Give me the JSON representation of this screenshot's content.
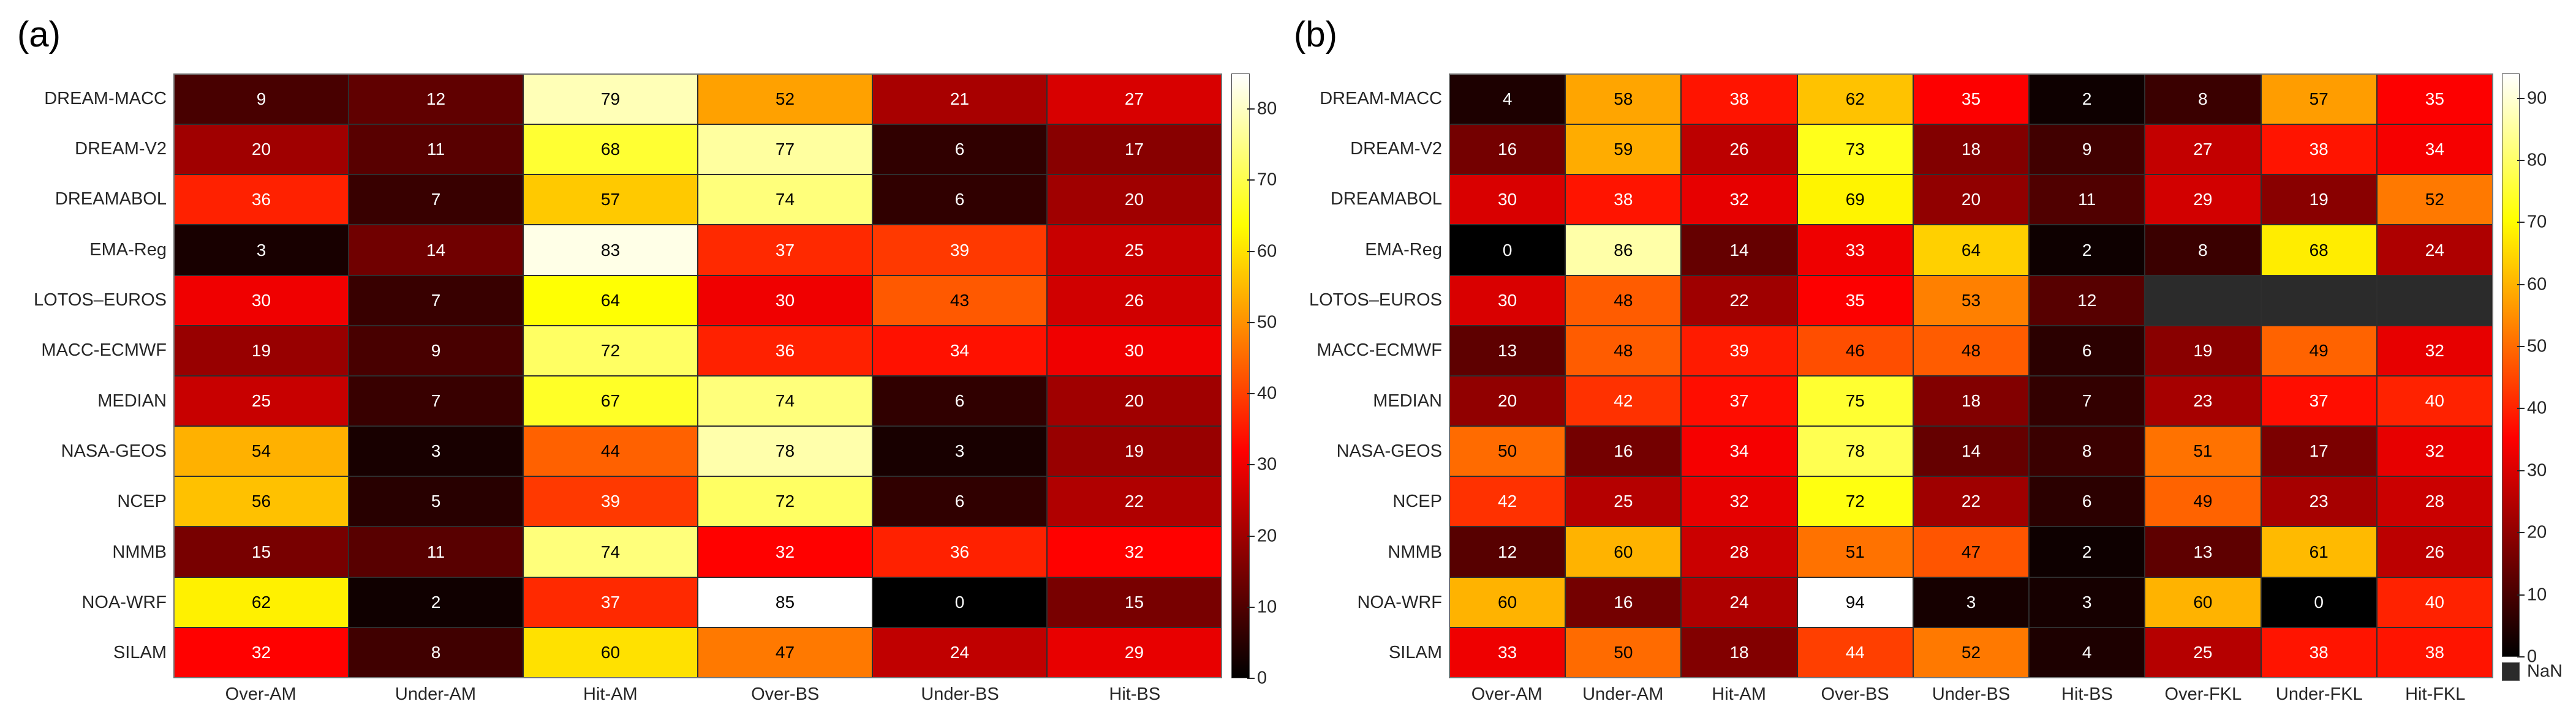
{
  "colors": {
    "background": "#ffffff",
    "nan_cell": "#2b2b2b",
    "grid_line": "#2e2e2e",
    "plot_border": "#757575",
    "colorbar_border": "#4d4d4d",
    "label_text": "#262626",
    "panel_letter_text": "#000000",
    "cell_text_light": "#ffffff",
    "cell_text_dark": "#000000",
    "colormap_stops": [
      "#000000",
      "#ff0000",
      "#ffff00",
      "#ffffff"
    ]
  },
  "chart_data": [
    {
      "type": "heatmap",
      "panel_label": "(a)",
      "colormap": "hot",
      "vmin": 0,
      "vmax": 85,
      "grid": true,
      "legend_position": "right-colorbar",
      "colorbar_ticks": [
        0,
        10,
        20,
        30,
        40,
        50,
        60,
        70,
        80
      ],
      "nan_label": null,
      "rows": [
        "DREAM-MACC",
        "DREAM-V2",
        "DREAMABOL",
        "EMA-Reg",
        "LOTOS–EUROS",
        "MACC-ECMWF",
        "MEDIAN",
        "NASA-GEOS",
        "NCEP",
        "NMMB",
        "NOA-WRF",
        "SILAM"
      ],
      "columns": [
        "Over-AM",
        "Under-AM",
        "Hit-AM",
        "Over-BS",
        "Under-BS",
        "Hit-BS"
      ],
      "values": [
        [
          9,
          12,
          79,
          52,
          21,
          27
        ],
        [
          20,
          11,
          68,
          77,
          6,
          17
        ],
        [
          36,
          7,
          57,
          74,
          6,
          20
        ],
        [
          3,
          14,
          83,
          37,
          39,
          25
        ],
        [
          30,
          7,
          64,
          30,
          43,
          26
        ],
        [
          19,
          9,
          72,
          36,
          34,
          30
        ],
        [
          25,
          7,
          67,
          74,
          6,
          20
        ],
        [
          54,
          3,
          44,
          78,
          3,
          19
        ],
        [
          56,
          5,
          39,
          72,
          6,
          22
        ],
        [
          15,
          11,
          74,
          32,
          36,
          32
        ],
        [
          62,
          2,
          37,
          85,
          0,
          15
        ],
        [
          32,
          8,
          60,
          47,
          24,
          29
        ]
      ]
    },
    {
      "type": "heatmap",
      "panel_label": "(b)",
      "colormap": "hot",
      "vmin": 0,
      "vmax": 94,
      "grid": true,
      "legend_position": "right-colorbar",
      "colorbar_ticks": [
        0,
        10,
        20,
        30,
        40,
        50,
        60,
        70,
        80,
        90
      ],
      "nan_label": "NaN",
      "rows": [
        "DREAM-MACC",
        "DREAM-V2",
        "DREAMABOL",
        "EMA-Reg",
        "LOTOS–EUROS",
        "MACC-ECMWF",
        "MEDIAN",
        "NASA-GEOS",
        "NCEP",
        "NMMB",
        "NOA-WRF",
        "SILAM"
      ],
      "columns": [
        "Over-AM",
        "Under-AM",
        "Hit-AM",
        "Over-BS",
        "Under-BS",
        "Hit-BS",
        "Over-FKL",
        "Under-FKL",
        "Hit-FKL"
      ],
      "values": [
        [
          4,
          58,
          38,
          62,
          35,
          2,
          8,
          57,
          35
        ],
        [
          16,
          59,
          26,
          73,
          18,
          9,
          27,
          38,
          34
        ],
        [
          30,
          38,
          32,
          69,
          20,
          11,
          29,
          19,
          52
        ],
        [
          0,
          86,
          14,
          33,
          64,
          2,
          8,
          68,
          24
        ],
        [
          30,
          48,
          22,
          35,
          53,
          12,
          null,
          null,
          null
        ],
        [
          13,
          48,
          39,
          46,
          48,
          6,
          19,
          49,
          32
        ],
        [
          20,
          42,
          37,
          75,
          18,
          7,
          23,
          37,
          40
        ],
        [
          50,
          16,
          34,
          78,
          14,
          8,
          51,
          17,
          32
        ],
        [
          42,
          25,
          32,
          72,
          22,
          6,
          49,
          23,
          28
        ],
        [
          12,
          60,
          28,
          51,
          47,
          2,
          13,
          61,
          26
        ],
        [
          60,
          16,
          24,
          94,
          3,
          3,
          60,
          0,
          40
        ],
        [
          33,
          50,
          18,
          44,
          52,
          4,
          25,
          38,
          38
        ]
      ]
    }
  ]
}
